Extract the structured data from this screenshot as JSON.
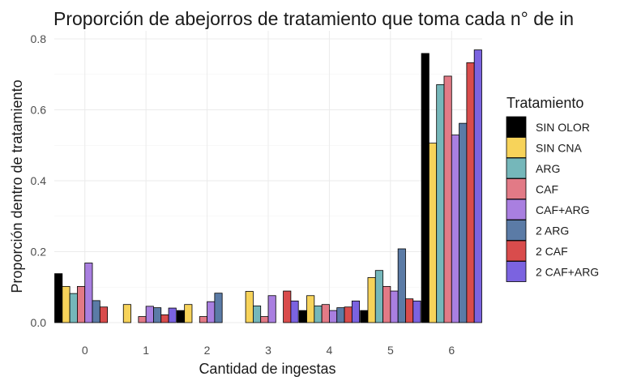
{
  "chart_data": {
    "type": "bar",
    "title": "Proporción de abejorros de tratamiento que toma cada n° de in",
    "xlabel": "Cantidad de ingestas",
    "ylabel": "Proporción dentro de tratamiento",
    "categories": [
      "0",
      "1",
      "2",
      "3",
      "4",
      "5",
      "6"
    ],
    "ylim": [
      0,
      0.8
    ],
    "yticks": [
      "0.0",
      "0.2",
      "0.4",
      "0.6",
      "0.8"
    ],
    "grid": true,
    "legend_title": "Tratamiento",
    "legend_position": "right",
    "series": [
      {
        "name": "SIN OLOR",
        "color": "#000000",
        "values": [
          0.138,
          0,
          0.034,
          0,
          0.034,
          0.034,
          0.759
        ]
      },
      {
        "name": "SIN CNA",
        "color": "#F7D35A",
        "values": [
          0.102,
          0.051,
          0.051,
          0.088,
          0.076,
          0.127,
          0.506
        ]
      },
      {
        "name": "ARG",
        "color": "#75B7BA",
        "values": [
          0.082,
          0,
          0,
          0.047,
          0.047,
          0.147,
          0.671
        ]
      },
      {
        "name": "CAF",
        "color": "#E27A86",
        "values": [
          0.102,
          0.017,
          0.017,
          0.017,
          0.051,
          0.102,
          0.695
        ]
      },
      {
        "name": "CAF+ARG",
        "color": "#A97FE0",
        "values": [
          0.168,
          0.046,
          0.059,
          0.076,
          0.034,
          0.089,
          0.529
        ]
      },
      {
        "name": "2 ARG",
        "color": "#5B7BA6",
        "values": [
          0.062,
          0.042,
          0.083,
          0,
          0.042,
          0.208,
          0.562
        ]
      },
      {
        "name": "2 CAF",
        "color": "#D94C4C",
        "values": [
          0.044,
          0.022,
          0,
          0.089,
          0.044,
          0.067,
          0.733
        ]
      },
      {
        "name": "2 CAF+ARG",
        "color": "#7B63E0",
        "values": [
          0,
          0.041,
          0,
          0.061,
          0.061,
          0.061,
          0.769
        ]
      }
    ]
  }
}
